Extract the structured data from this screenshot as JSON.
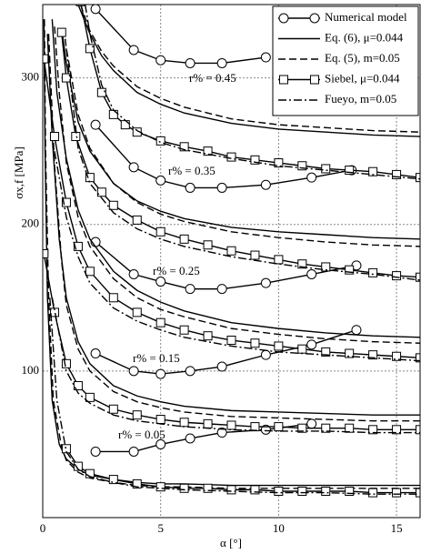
{
  "chart_data": {
    "type": "line",
    "xlabel": "α [°]",
    "ylabel": "σx,f [MPa]",
    "xlim": [
      0,
      16
    ],
    "ylim": [
      0,
      350
    ],
    "xticks": [
      0,
      5,
      10,
      15
    ],
    "yticks": [
      100,
      200,
      300
    ],
    "grid": true,
    "legend": "upper right",
    "annotations": [
      "r% = 0.45",
      "r% = 0.35",
      "r% = 0.25",
      "r% = 0.15",
      "r% = 0.05"
    ],
    "series": [
      {
        "name": "Numerical model",
        "color": "#000",
        "style": "solid",
        "marker": "circle",
        "curves": [
          {
            "x": [
              2.24,
              3.86,
              5,
              6.25,
              7.6,
              9.46
            ],
            "values": [
              347,
              319,
              312,
              310,
              310,
              314
            ]
          },
          {
            "x": [
              2.24,
              3.86,
              5,
              6.25,
              7.6,
              9.46,
              11.4,
              13.1
            ],
            "values": [
              268,
              239,
              230,
              225,
              225,
              227,
              232,
              237
            ]
          },
          {
            "x": [
              2.24,
              3.86,
              5,
              6.25,
              7.6,
              9.46,
              11.4,
              13.3
            ],
            "values": [
              188,
              166,
              161,
              156,
              156,
              160,
              166,
              172
            ]
          },
          {
            "x": [
              2.24,
              3.86,
              5,
              6.25,
              7.6,
              9.46,
              11.4,
              13.3
            ],
            "values": [
              112,
              100,
              98,
              100,
              103,
              111,
              118,
              128
            ]
          },
          {
            "x": [
              2.24,
              3.86,
              5,
              6.25,
              7.6,
              9.46,
              11.4
            ],
            "values": [
              45,
              45,
              50,
              54,
              58,
              60,
              64
            ]
          }
        ]
      },
      {
        "name": "Eq. (6), μ=0.044",
        "color": "#000",
        "style": "solid",
        "marker": "none",
        "curves": [
          {
            "x": [
              1.5,
              2,
              2.5,
              3,
              4,
              5,
              6,
              8,
              10,
              12,
              14,
              16
            ],
            "values": [
              350,
              330,
              315,
              305,
              290,
              282,
              276,
              269,
              265,
              263,
              261,
              260
            ]
          },
          {
            "x": [
              0.8,
              1,
              1.5,
              2,
              3,
              4,
              5,
              6,
              8,
              10,
              12,
              14,
              16
            ],
            "values": [
              334,
              310,
              270,
              250,
              228,
              216,
              209,
              204,
              198,
              195,
              193,
              191,
              190
            ]
          },
          {
            "x": [
              0.4,
              0.6,
              1,
              1.5,
              2,
              3,
              4,
              5,
              6,
              8,
              10,
              12,
              14,
              16
            ],
            "values": [
              340,
              290,
              245,
              210,
              190,
              168,
              155,
              147,
              141,
              133,
              129,
              126,
              124,
              123
            ]
          },
          {
            "x": [
              0.2,
              0.4,
              0.7,
              1,
              1.5,
              2,
              3,
              4,
              5,
              6,
              8,
              10,
              12,
              14,
              16
            ],
            "values": [
              330,
              260,
              190,
              150,
              120,
              105,
              90,
              83,
              79,
              76,
              73,
              72,
              71,
              70,
              70
            ]
          },
          {
            "x": [
              0.05,
              0.1,
              0.2,
              0.4,
              0.7,
              1,
              1.5,
              2,
              3,
              4,
              5,
              6,
              8,
              10,
              12,
              14,
              16
            ],
            "values": [
              340,
              250,
              150,
              80,
              50,
              40,
              33,
              29,
              26,
              24,
              23,
              23,
              22,
              22,
              22,
              22,
              22
            ]
          }
        ]
      },
      {
        "name": "Eq. (5), m=0.05",
        "color": "#000",
        "style": "dashed",
        "marker": "none",
        "curves": [
          {
            "x": [
              1.6,
              2,
              2.5,
              3,
              4,
              5,
              6,
              8,
              10,
              12,
              14,
              16
            ],
            "values": [
              350,
              332,
              318,
              308,
              294,
              286,
              280,
              272,
              268,
              266,
              264,
              263
            ]
          },
          {
            "x": [
              0.9,
              1,
              1.5,
              2,
              3,
              4,
              5,
              6,
              8,
              10,
              12,
              14,
              16
            ],
            "values": [
              334,
              320,
              275,
              252,
              228,
              215,
              207,
              202,
              195,
              191,
              188,
              186,
              185
            ]
          },
          {
            "x": [
              0.5,
              0.7,
              1,
              1.5,
              2,
              3,
              4,
              5,
              6,
              8,
              10,
              12,
              14,
              16
            ],
            "values": [
              335,
              290,
              242,
              205,
              185,
              163,
              150,
              142,
              137,
              129,
              125,
              122,
              120,
              119
            ]
          },
          {
            "x": [
              0.25,
              0.5,
              0.8,
              1,
              1.5,
              2,
              3,
              4,
              5,
              6,
              8,
              10,
              12,
              14,
              16
            ],
            "values": [
              330,
              240,
              175,
              145,
              115,
              100,
              86,
              79,
              75,
              72,
              69,
              68,
              67,
              66,
              66
            ]
          },
          {
            "x": [
              0.07,
              0.12,
              0.25,
              0.45,
              0.8,
              1,
              1.5,
              2,
              3,
              4,
              5,
              6,
              8,
              10,
              12,
              14,
              16
            ],
            "values": [
              340,
              250,
              150,
              80,
              48,
              39,
              31,
              27,
              24,
              22,
              21,
              21,
              20,
              20,
              20,
              20,
              20
            ]
          }
        ]
      },
      {
        "name": "Siebel, μ=0.044",
        "color": "#000",
        "style": "solid",
        "marker": "square",
        "curves": [
          {
            "x": [
              1.6,
              2,
              2.5,
              3,
              3.5,
              4,
              5,
              6,
              7,
              8,
              9,
              10,
              11,
              12,
              13,
              14,
              15,
              16
            ],
            "values": [
              352,
              320,
              290,
              275,
              268,
              263,
              257,
              253,
              250,
              246,
              244,
              242,
              240,
              238,
              237,
              236,
              234,
              232
            ]
          },
          {
            "x": [
              0.8,
              1,
              1.4,
              2,
              2.5,
              3,
              4,
              5,
              6,
              7,
              8,
              9,
              10,
              11,
              12,
              13,
              14,
              15,
              16
            ],
            "values": [
              331,
              300,
              260,
              232,
              222,
              213,
              203,
              195,
              190,
              186,
              182,
              179,
              176,
              173,
              171,
              169,
              167,
              165,
              164
            ]
          },
          {
            "x": [
              0.05,
              0.5,
              1,
              1.5,
              2,
              3,
              4,
              5,
              6,
              7,
              8,
              9,
              10,
              11,
              12,
              13,
              14,
              15,
              16
            ],
            "values": [
              313,
              260,
              215,
              185,
              168,
              150,
              140,
              133,
              128,
              124,
              121,
              119,
              117,
              115,
              113,
              112,
              111,
              110,
              109
            ]
          },
          {
            "x": [
              0.05,
              0.5,
              1,
              1.5,
              2,
              3,
              4,
              5,
              6,
              7,
              8,
              9,
              10,
              11,
              12,
              13,
              14,
              15,
              16
            ],
            "values": [
              180,
              140,
              105,
              90,
              82,
              74,
              70,
              67,
              65,
              64,
              63,
              62,
              62,
              61,
              61,
              61,
              60,
              60,
              60
            ]
          },
          {
            "x": [
              1,
              1.5,
              2,
              3,
              4,
              5,
              6,
              7,
              8,
              9,
              10,
              11,
              12,
              13,
              14,
              15,
              16
            ],
            "values": [
              47,
              35,
              30,
              26,
              23,
              21,
              20,
              20,
              19,
              19,
              18,
              18,
              18,
              18,
              17,
              17,
              17
            ]
          }
        ]
      },
      {
        "name": "Fueyo, m=0.05",
        "color": "#000",
        "style": "dashdot",
        "marker": "none",
        "curves": [
          {
            "x": [
              1.8,
              2,
              2.5,
              3,
              4,
              5,
              6,
              8,
              10,
              12,
              14,
              16
            ],
            "values": [
              350,
              330,
              295,
              278,
              264,
              256,
              251,
              245,
              240,
              237,
              234,
              231
            ]
          },
          {
            "x": [
              1,
              1.5,
              2,
              3,
              4,
              5,
              6,
              8,
              10,
              12,
              14,
              16
            ],
            "values": [
              320,
              252,
              228,
              208,
              197,
              190,
              185,
              178,
              173,
              169,
              166,
              162
            ]
          },
          {
            "x": [
              0.5,
              1,
              1.5,
              2,
              3,
              4,
              5,
              6,
              8,
              10,
              12,
              14,
              16
            ],
            "values": [
              250,
              205,
              178,
              160,
              143,
              134,
              128,
              123,
              117,
              113,
              111,
              109,
              107
            ]
          },
          {
            "x": [
              0.4,
              1,
              1.5,
              2,
              3,
              4,
              5,
              6,
              8,
              10,
              12,
              14,
              16
            ],
            "values": [
              150,
              100,
              85,
              78,
              70,
              66,
              64,
              62,
              60,
              59,
              59,
              58,
              58
            ]
          },
          {
            "x": [
              0.3,
              0.6,
              1,
              1.5,
              2,
              3,
              4,
              5,
              6,
              8,
              10,
              12,
              14,
              16
            ],
            "values": [
              150,
              80,
              45,
              33,
              28,
              24,
              21,
              20,
              19,
              18,
              17,
              17,
              16,
              16
            ]
          }
        ]
      }
    ]
  }
}
